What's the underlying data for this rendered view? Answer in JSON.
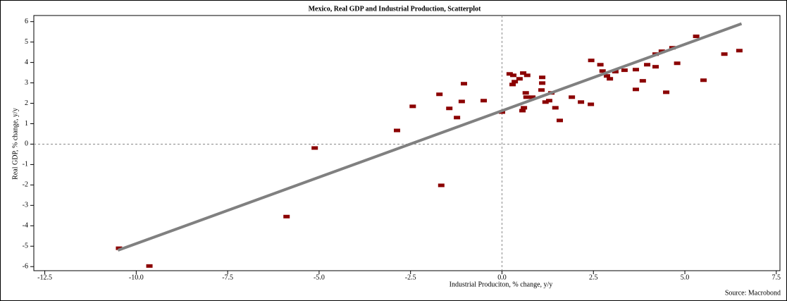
{
  "chart_data": {
    "type": "scatter",
    "title": "Mexico, Real GDP and Industrial Production, Scatterplot",
    "x_label": "Industrial Produciton, % change, y/y",
    "y_label": "Real GDP, % change, y/y",
    "source": "Source: Macrobond",
    "color": "#8b0000",
    "trend_color": "#808080",
    "zero_lines": true,
    "xlim": [
      -12.8,
      7.6
    ],
    "ylim": [
      -6.2,
      6.3
    ],
    "xticks": [
      -12.5,
      {
        "value": -10,
        "label": "-10.0"
      },
      -7.5,
      {
        "value": -5,
        "label": "-5.0"
      },
      -2.5,
      {
        "value": 0,
        "label": "0.0"
      },
      2.5,
      {
        "value": 5,
        "label": "5.0"
      },
      7.5
    ],
    "yticks": [
      -6,
      -5,
      -4,
      -3,
      -2,
      -1,
      0,
      1,
      2,
      3,
      4,
      5,
      6
    ],
    "x": [
      -10.47,
      -9.64,
      -5.89,
      -5.12,
      -2.87,
      -2.44,
      -1.71,
      -1.66,
      -1.44,
      -1.23,
      -1.1,
      -1.04,
      -0.5,
      0.0,
      0.21,
      0.31,
      0.29,
      0.35,
      0.48,
      0.58,
      0.56,
      0.6,
      0.65,
      0.67,
      0.69,
      0.83,
      1.1,
      1.1,
      1.08,
      1.19,
      1.29,
      1.35,
      1.46,
      1.58,
      1.91,
      2.16,
      2.43,
      2.44,
      2.69,
      2.75,
      2.87,
      2.95,
      3.1,
      3.35,
      3.66,
      3.66,
      3.85,
      3.97,
      4.2,
      4.2,
      4.37,
      4.49,
      4.66,
      4.79,
      5.31,
      5.51,
      6.08,
      6.49
    ],
    "values": [
      -5.1,
      -5.97,
      -3.55,
      -0.19,
      0.67,
      1.85,
      2.44,
      -2.02,
      1.75,
      1.3,
      2.09,
      2.96,
      2.13,
      1.57,
      3.44,
      3.37,
      2.92,
      3.06,
      3.2,
      3.48,
      1.64,
      1.78,
      2.51,
      2.3,
      3.37,
      2.3,
      3.27,
      2.99,
      2.65,
      2.06,
      2.13,
      2.51,
      1.78,
      1.16,
      2.3,
      2.06,
      1.95,
      4.1,
      3.89,
      3.58,
      3.34,
      3.2,
      3.55,
      3.62,
      2.68,
      3.65,
      3.1,
      3.89,
      3.79,
      4.41,
      4.55,
      2.54,
      4.72,
      3.96,
      5.28,
      3.13,
      4.41,
      4.58
    ],
    "trendline": {
      "x": [
        -10.5,
        6.55
      ],
      "y": [
        -5.2,
        5.9
      ]
    }
  }
}
